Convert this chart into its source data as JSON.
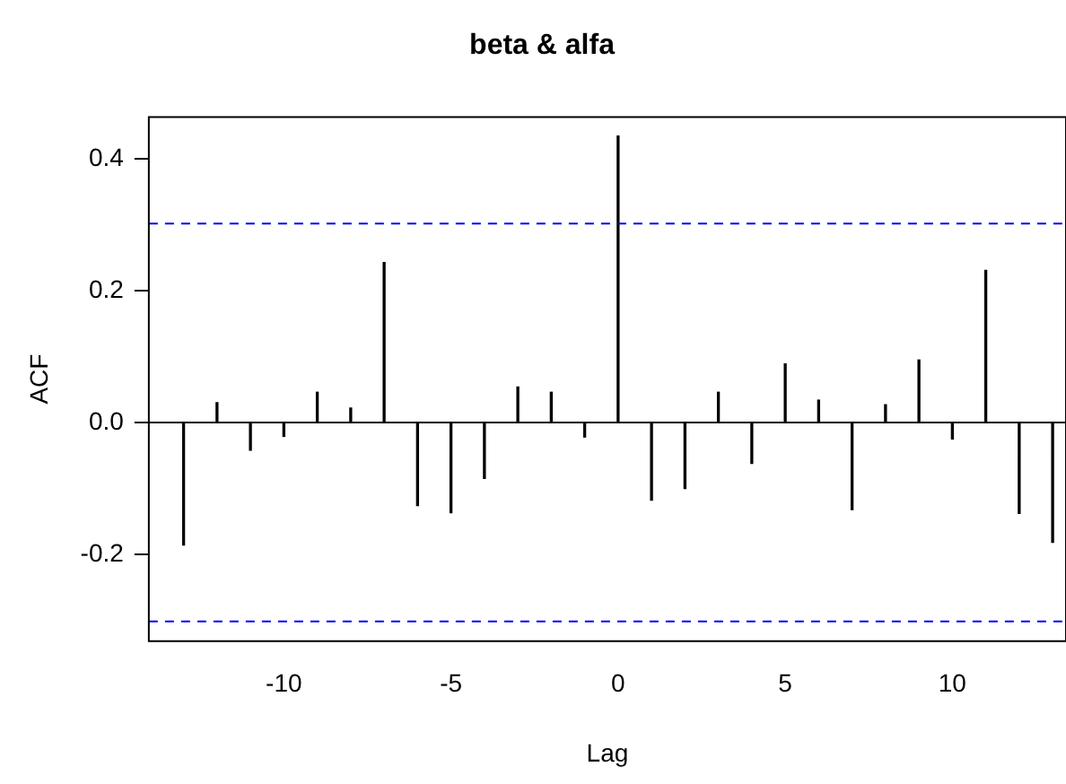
{
  "chart_data": {
    "type": "bar",
    "title": "beta & alfa",
    "xlabel": "Lag",
    "ylabel": "ACF",
    "x": [
      -13,
      -12,
      -11,
      -10,
      -9,
      -8,
      -7,
      -6,
      -5,
      -4,
      -3,
      -2,
      -1,
      0,
      1,
      2,
      3,
      4,
      5,
      6,
      7,
      8,
      9,
      10,
      11,
      12,
      13
    ],
    "values": [
      -0.186,
      0.03,
      -0.042,
      -0.021,
      0.046,
      0.022,
      0.243,
      -0.126,
      -0.137,
      -0.085,
      0.054,
      0.046,
      -0.022,
      0.435,
      -0.118,
      -0.1,
      0.046,
      -0.062,
      0.089,
      0.034,
      -0.132,
      0.027,
      0.095,
      -0.025,
      0.231,
      -0.138,
      -0.182
    ],
    "color": "#000000",
    "xlim": [
      -14.04,
      13.4
    ],
    "xticks": [
      -10,
      -5,
      0,
      5,
      10
    ],
    "ylim": [
      -0.332,
      0.464
    ],
    "yticks": [
      {
        "value": -0.2,
        "label": "-0.2"
      },
      {
        "value": 0,
        "label": "0.0"
      },
      {
        "value": 0.2,
        "label": "0.2"
      },
      {
        "value": 0.4,
        "label": "0.4"
      }
    ],
    "ref_lines": [
      {
        "axis": "y",
        "value": 0.302,
        "color": "#0000ff",
        "line_style": "dashed"
      },
      {
        "axis": "y",
        "value": -0.302,
        "color": "#0000ff",
        "line_style": "dashed"
      },
      {
        "axis": "y",
        "value": 0,
        "color": "#000000",
        "line_style": "solid"
      }
    ],
    "grid": false,
    "legend": false
  }
}
